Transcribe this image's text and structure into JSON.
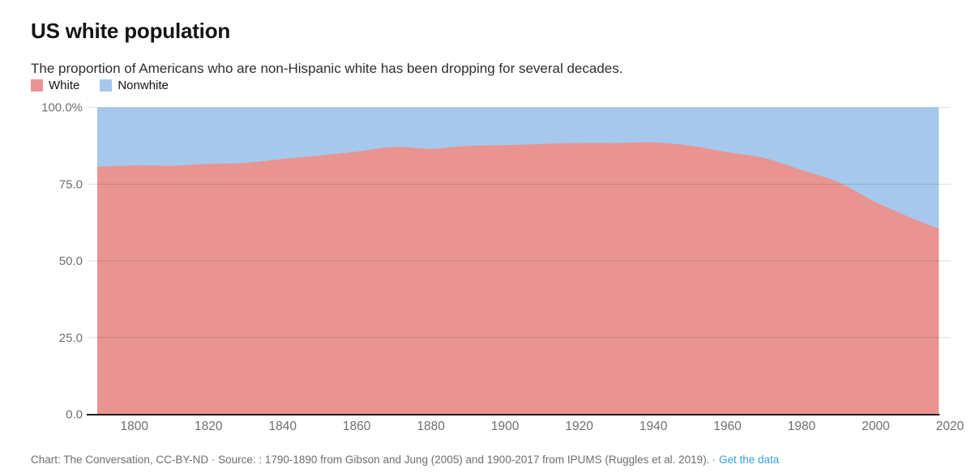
{
  "header": {
    "title": "US white population",
    "subtitle": "The proportion of Americans who are non-Hispanic white has been dropping for several decades."
  },
  "legend": {
    "items": [
      {
        "label": "White",
        "color": "#ea9492"
      },
      {
        "label": "Nonwhite",
        "color": "#a5c8ec"
      }
    ]
  },
  "chart_data": {
    "type": "area",
    "stacked": true,
    "unit": "percent",
    "title": "US white population",
    "xlabel": "",
    "ylabel": "",
    "xlim": [
      1790,
      2020
    ],
    "ylim": [
      0,
      100
    ],
    "grid": true,
    "legend_position": "top-left",
    "x": [
      1790,
      1800,
      1810,
      1820,
      1830,
      1840,
      1850,
      1860,
      1870,
      1880,
      1890,
      1900,
      1910,
      1920,
      1930,
      1940,
      1950,
      1960,
      1970,
      1980,
      1990,
      2000,
      2010,
      2017
    ],
    "series": [
      {
        "name": "White",
        "color": "#ea9492",
        "values": [
          80.7,
          81.1,
          81.0,
          81.6,
          81.9,
          83.2,
          84.3,
          85.6,
          87.1,
          86.5,
          87.5,
          87.7,
          88.1,
          88.4,
          88.4,
          88.6,
          87.5,
          85.4,
          83.5,
          79.6,
          75.6,
          69.1,
          63.8,
          60.5
        ]
      },
      {
        "name": "Nonwhite",
        "color": "#a5c8ec",
        "values": [
          19.3,
          18.9,
          19.0,
          18.4,
          18.1,
          16.8,
          15.7,
          14.4,
          12.9,
          13.5,
          12.5,
          12.3,
          11.9,
          11.6,
          11.6,
          11.4,
          12.5,
          14.6,
          16.5,
          20.4,
          24.4,
          30.9,
          36.2,
          39.5
        ]
      }
    ],
    "x_ticks": [
      1800,
      1820,
      1840,
      1860,
      1880,
      1900,
      1920,
      1940,
      1960,
      1980,
      2000,
      2020
    ],
    "y_ticks": {
      "values": [
        0,
        25,
        50,
        75,
        100
      ],
      "labels": [
        "0.0",
        "25.0",
        "50.0",
        "75.0",
        "100.0%"
      ]
    }
  },
  "footer": {
    "credit": "Chart: The Conversation, CC-BY-ND · Source: : 1790-1890 from Gibson and Jung (2005) and 1900-2017 from IPUMS (Ruggles et al. 2019).",
    "bullet": "·",
    "link_label": "Get the data",
    "link_color": "#35a2d8"
  },
  "colors": {
    "background": "#ffffff",
    "axis_line": "#1d1d1d",
    "tick_label": "#6f6f6f",
    "gridline": "#d9d9d9"
  }
}
